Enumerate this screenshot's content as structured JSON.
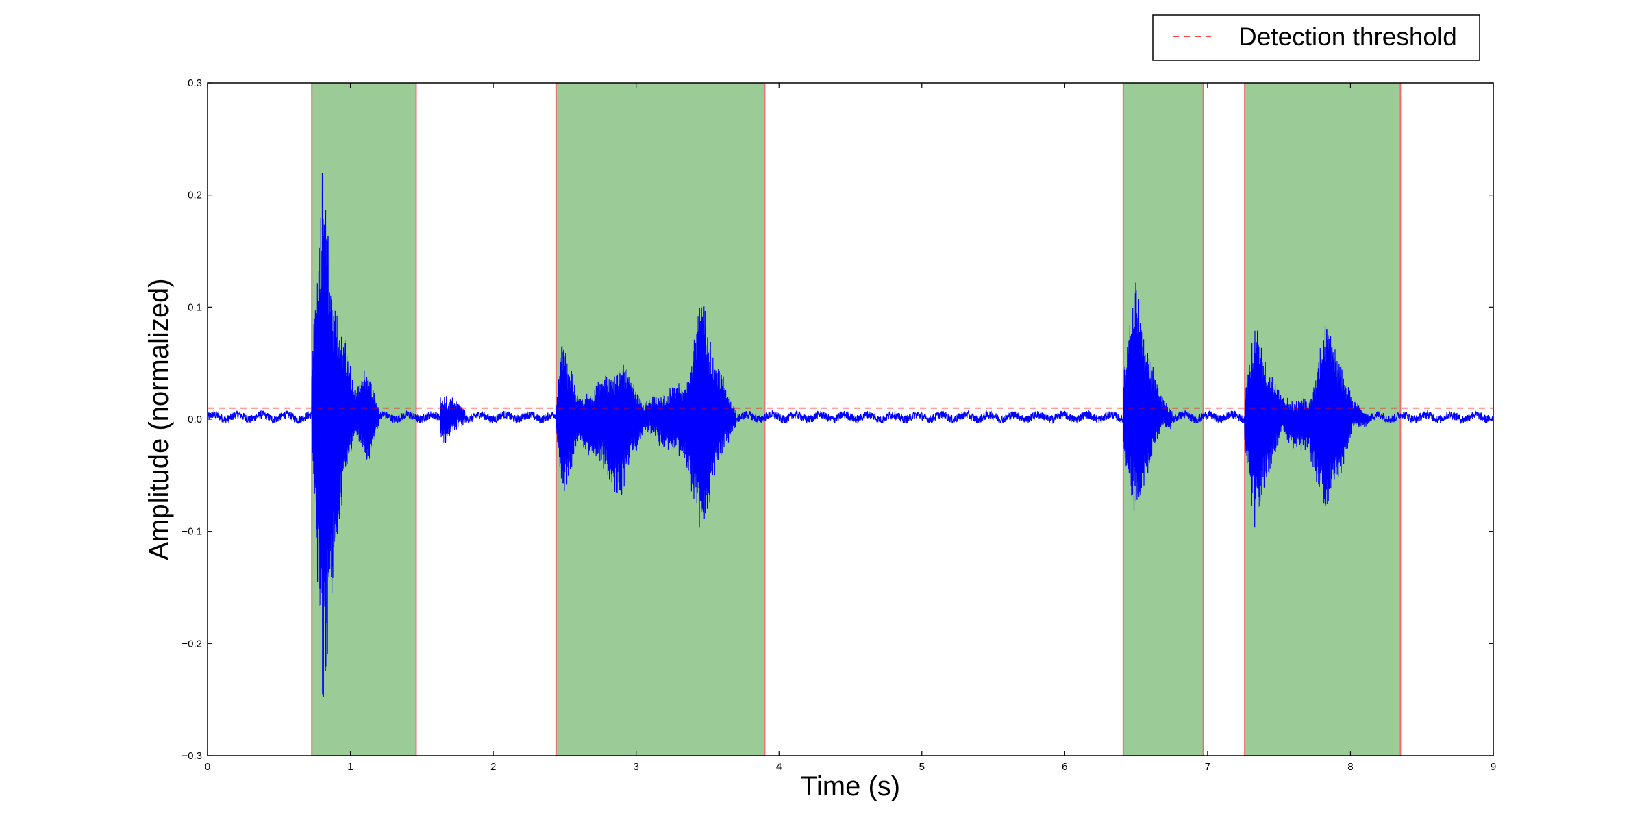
{
  "chart_data": {
    "type": "line",
    "xlabel": "Time (s)",
    "ylabel": "Amplitude (normalized)",
    "xlim": [
      0,
      9
    ],
    "ylim": [
      -0.3,
      0.3
    ],
    "xticks": [
      0,
      1,
      2,
      3,
      4,
      5,
      6,
      7,
      8,
      9
    ],
    "yticks": [
      -0.3,
      -0.2,
      -0.1,
      0.0,
      0.1,
      0.2,
      0.3
    ],
    "xtick_labels": [
      "0",
      "1",
      "2",
      "3",
      "4",
      "5",
      "6",
      "7",
      "8",
      "9"
    ],
    "ytick_labels": [
      "−0.3",
      "−0.2",
      "−0.1",
      "0.0",
      "0.1",
      "0.2",
      "0.3"
    ],
    "grid": false,
    "legend": {
      "position": "top-right",
      "entries": [
        {
          "label": "Detection threshold",
          "style": "dashed",
          "color": "#ff0000"
        }
      ]
    },
    "threshold": {
      "y": 0.01,
      "label": "Detection threshold",
      "color": "#ff0000",
      "style": "dashed"
    },
    "detected_regions": [
      {
        "start": 0.73,
        "end": 1.46
      },
      {
        "start": 2.44,
        "end": 3.9
      },
      {
        "start": 6.41,
        "end": 6.97
      },
      {
        "start": 7.26,
        "end": 8.35
      }
    ],
    "region_fill_color": "#9bcc98",
    "region_edge_color": "#e8706e",
    "series": [
      {
        "color": "#0000ff",
        "envelope_bursts": [
          {
            "t": [
              0.73,
              0.81,
              0.87,
              0.97,
              1.03,
              1.12,
              1.2
            ],
            "upper": [
              0.045,
              0.24,
              0.1,
              0.07,
              0.025,
              0.045,
              0.005
            ],
            "lower": [
              -0.03,
              -0.275,
              -0.16,
              -0.045,
              -0.015,
              -0.04,
              -0.005
            ]
          },
          {
            "t": [
              1.63,
              1.68,
              1.8
            ],
            "upper": [
              0.02,
              0.018,
              0.005
            ],
            "lower": [
              -0.02,
              -0.018,
              -0.005
            ]
          },
          {
            "t": [
              2.44,
              2.48,
              2.6,
              2.9,
              2.96,
              3.05,
              3.35,
              3.46,
              3.55,
              3.7
            ],
            "upper": [
              0.01,
              0.07,
              0.015,
              0.045,
              0.035,
              0.01,
              0.03,
              0.11,
              0.05,
              0.005
            ],
            "lower": [
              -0.01,
              -0.075,
              -0.02,
              -0.07,
              -0.04,
              -0.01,
              -0.04,
              -0.11,
              -0.05,
              -0.005
            ]
          },
          {
            "t": [
              6.41,
              6.5,
              6.56,
              6.68,
              6.75
            ],
            "upper": [
              0.04,
              0.12,
              0.07,
              0.015,
              0.005
            ],
            "lower": [
              -0.03,
              -0.095,
              -0.055,
              -0.01,
              -0.005
            ]
          },
          {
            "t": [
              7.26,
              7.33,
              7.4,
              7.52,
              7.72,
              7.82,
              7.93,
              8.02,
              8.12
            ],
            "upper": [
              0.025,
              0.085,
              0.05,
              0.015,
              0.012,
              0.085,
              0.05,
              0.01,
              0.005
            ],
            "lower": [
              -0.03,
              -0.1,
              -0.06,
              -0.015,
              -0.035,
              -0.09,
              -0.05,
              -0.01,
              -0.005
            ]
          }
        ],
        "baseline_noise": 0.006
      }
    ]
  }
}
